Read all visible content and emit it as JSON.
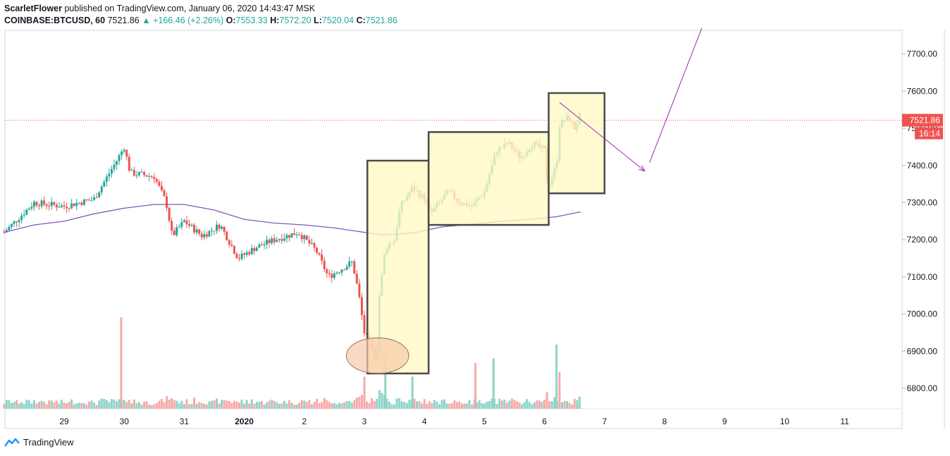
{
  "header": {
    "author": "ScarletFlower",
    "published_text": "published on TradingView.com, January 06, 2020 14:43:47 MSK",
    "symbol": "COINBASE:BTCUSD, 60",
    "last": "7521.86",
    "change": "▲ +166.46 (+2.26%)",
    "o_label": "O:",
    "o_value": "7553.33",
    "h_label": "H:",
    "h_value": "7572.20",
    "l_label": "L:",
    "l_value": "7520.04",
    "c_label": "C:",
    "c_value": "7521.86"
  },
  "footer": {
    "brand": "TradingView"
  },
  "colors": {
    "up": "#26a69a",
    "down": "#ef5350",
    "up_vol": "#8fd3c8",
    "down_vol": "#f7a9a8",
    "ma": "#7e57c2",
    "box_fill": "#fff9c4",
    "box_stroke": "#4a4a4a",
    "ellipse_fill": "#f8c9a8",
    "arrow": "#9c27b0",
    "price_line": "#ef5350"
  },
  "chart_data": {
    "type": "candlestick",
    "ylim": [
      6740,
      7770
    ],
    "xlim": [
      28.0,
      12.0
    ],
    "y_ticks": [
      "6800.00",
      "6900.00",
      "7000.00",
      "7100.00",
      "7200.00",
      "7300.00",
      "7400.00",
      "7500.00",
      "7600.00",
      "7700.00"
    ],
    "x_ticks": [
      {
        "label": "29",
        "x": 29
      },
      {
        "label": "30",
        "x": 30
      },
      {
        "label": "31",
        "x": 31
      },
      {
        "label": "2020",
        "x": 32
      },
      {
        "label": "2",
        "x": 33
      },
      {
        "label": "3",
        "x": 34
      },
      {
        "label": "4",
        "x": 35
      },
      {
        "label": "5",
        "x": 36
      },
      {
        "label": "6",
        "x": 37
      },
      {
        "label": "7",
        "x": 38
      },
      {
        "label": "8",
        "x": 39
      },
      {
        "label": "9",
        "x": 40
      },
      {
        "label": "10",
        "x": 41
      },
      {
        "label": "11",
        "x": 42
      }
    ],
    "last_price_label": "7521.86",
    "countdown_label": "16:14",
    "last_price": 7521.86,
    "key_points": [
      {
        "x": 28.0,
        "price": 7220
      },
      {
        "x": 28.5,
        "price": 7300
      },
      {
        "x": 29.0,
        "price": 7290
      },
      {
        "x": 29.5,
        "price": 7310
      },
      {
        "x": 29.9,
        "price": 7420
      },
      {
        "x": 30.0,
        "price": 7450
      },
      {
        "x": 30.1,
        "price": 7380
      },
      {
        "x": 30.5,
        "price": 7370
      },
      {
        "x": 30.7,
        "price": 7300
      },
      {
        "x": 30.8,
        "price": 7210
      },
      {
        "x": 31.0,
        "price": 7250
      },
      {
        "x": 31.3,
        "price": 7210
      },
      {
        "x": 31.6,
        "price": 7240
      },
      {
        "x": 31.9,
        "price": 7150
      },
      {
        "x": 32.2,
        "price": 7180
      },
      {
        "x": 32.5,
        "price": 7200
      },
      {
        "x": 32.9,
        "price": 7220
      },
      {
        "x": 33.2,
        "price": 7170
      },
      {
        "x": 33.4,
        "price": 7100
      },
      {
        "x": 33.8,
        "price": 7140
      },
      {
        "x": 33.9,
        "price": 7060
      },
      {
        "x": 34.0,
        "price": 6950
      },
      {
        "x": 34.2,
        "price": 6880
      },
      {
        "x": 34.25,
        "price": 7050
      },
      {
        "x": 34.35,
        "price": 7180
      },
      {
        "x": 34.5,
        "price": 7200
      },
      {
        "x": 34.6,
        "price": 7290
      },
      {
        "x": 34.8,
        "price": 7340
      },
      {
        "x": 35.0,
        "price": 7310
      },
      {
        "x": 35.1,
        "price": 7270
      },
      {
        "x": 35.4,
        "price": 7330
      },
      {
        "x": 35.6,
        "price": 7300
      },
      {
        "x": 35.8,
        "price": 7290
      },
      {
        "x": 36.0,
        "price": 7330
      },
      {
        "x": 36.2,
        "price": 7440
      },
      {
        "x": 36.4,
        "price": 7460
      },
      {
        "x": 36.6,
        "price": 7420
      },
      {
        "x": 36.8,
        "price": 7460
      },
      {
        "x": 37.0,
        "price": 7440
      },
      {
        "x": 37.05,
        "price": 7340
      },
      {
        "x": 37.2,
        "price": 7400
      },
      {
        "x": 37.25,
        "price": 7510
      },
      {
        "x": 37.4,
        "price": 7530
      },
      {
        "x": 37.5,
        "price": 7500
      },
      {
        "x": 37.6,
        "price": 7540
      },
      {
        "x": 37.62,
        "price": 7522
      }
    ],
    "moving_average": [
      {
        "x": 28.0,
        "price": 7220
      },
      {
        "x": 28.5,
        "price": 7240
      },
      {
        "x": 29.0,
        "price": 7250
      },
      {
        "x": 29.5,
        "price": 7270
      },
      {
        "x": 30.0,
        "price": 7285
      },
      {
        "x": 30.5,
        "price": 7295
      },
      {
        "x": 31.0,
        "price": 7295
      },
      {
        "x": 31.5,
        "price": 7280
      },
      {
        "x": 32.0,
        "price": 7255
      },
      {
        "x": 32.5,
        "price": 7245
      },
      {
        "x": 33.0,
        "price": 7240
      },
      {
        "x": 33.5,
        "price": 7232
      },
      {
        "x": 34.0,
        "price": 7220
      },
      {
        "x": 34.3,
        "price": 7213
      },
      {
        "x": 34.8,
        "price": 7218
      },
      {
        "x": 35.3,
        "price": 7235
      },
      {
        "x": 35.8,
        "price": 7242
      },
      {
        "x": 36.3,
        "price": 7250
      },
      {
        "x": 36.8,
        "price": 7256
      },
      {
        "x": 37.2,
        "price": 7262
      },
      {
        "x": 37.6,
        "price": 7275
      }
    ],
    "drawings": {
      "boxes": [
        {
          "x1": 34.05,
          "x2": 35.07,
          "y1": 6840,
          "y2": 7413
        },
        {
          "x1": 35.07,
          "x2": 37.07,
          "y1": 7240,
          "y2": 7490
        },
        {
          "x1": 37.07,
          "x2": 38.0,
          "y1": 7325,
          "y2": 7595
        }
      ],
      "ellipse": {
        "cx": 34.22,
        "cy": 6888,
        "rx": 0.52,
        "ry": 48
      },
      "arrows": [
        {
          "points": [
            [
              37.25,
              7570
            ],
            [
              38.67,
              7385
            ]
          ]
        },
        {
          "points": [
            [
              38.75,
              7408
            ],
            [
              39.62,
              7770
            ]
          ]
        }
      ]
    },
    "volume_spikes": [
      {
        "x": 29.95,
        "value": 1.0,
        "up": false
      },
      {
        "x": 34.0,
        "value": 0.35,
        "up": false
      },
      {
        "x": 34.35,
        "value": 0.6,
        "up": true
      },
      {
        "x": 34.8,
        "value": 0.35,
        "up": true
      },
      {
        "x": 35.85,
        "value": 0.5,
        "up": false
      },
      {
        "x": 36.15,
        "value": 0.55,
        "up": true
      },
      {
        "x": 37.2,
        "value": 0.7,
        "up": true
      },
      {
        "x": 37.25,
        "value": 0.4,
        "up": false
      }
    ]
  }
}
